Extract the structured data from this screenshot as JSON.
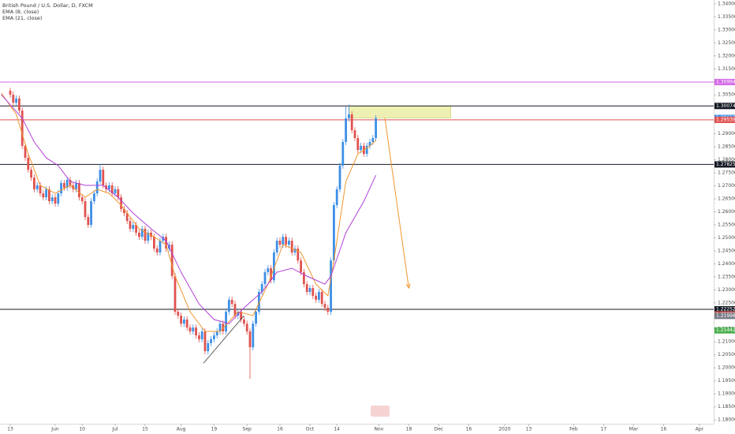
{
  "chart_data": {
    "type": "candlestick",
    "xlim": [
      -3.42,
      234.74
    ],
    "ylim": [
      1.1785,
      1.3415
    ],
    "xticks": [
      {
        "value": 0,
        "label": "13"
      },
      {
        "value": 15,
        "label": "Jun"
      },
      {
        "value": 24,
        "label": "10"
      },
      {
        "value": 35,
        "label": "Jul"
      },
      {
        "value": 45,
        "label": "15"
      },
      {
        "value": 57,
        "label": "Aug"
      },
      {
        "value": 68,
        "label": "19"
      },
      {
        "value": 79,
        "label": "Sep"
      },
      {
        "value": 90,
        "label": "16"
      },
      {
        "value": 100,
        "label": "Oct"
      },
      {
        "value": 109,
        "label": "14"
      },
      {
        "value": 123,
        "label": "Nov"
      },
      {
        "value": 133,
        "label": "18"
      },
      {
        "value": 143,
        "label": "Dec"
      },
      {
        "value": 153,
        "label": "16"
      },
      {
        "value": 165,
        "label": "2020"
      },
      {
        "value": 173,
        "label": "13"
      },
      {
        "value": 188,
        "label": "Feb"
      },
      {
        "value": 198,
        "label": "17"
      },
      {
        "value": 208,
        "label": "Mar"
      },
      {
        "value": 218,
        "label": "16"
      },
      {
        "value": 230,
        "label": "Apr"
      }
    ],
    "yticks": [
      {
        "value": 1.18,
        "label": "1.18000"
      },
      {
        "value": 1.185,
        "label": "1.18500"
      },
      {
        "value": 1.19,
        "label": "1.19000"
      },
      {
        "value": 1.195,
        "label": "1.19500"
      },
      {
        "value": 1.2,
        "label": "1.20000"
      },
      {
        "value": 1.205,
        "label": "1.20500"
      },
      {
        "value": 1.21,
        "label": "1.21000"
      },
      {
        "value": 1.215,
        "label": "1.21500"
      },
      {
        "value": 1.22,
        "label": "1.22000"
      },
      {
        "value": 1.225,
        "label": "1.22500"
      },
      {
        "value": 1.23,
        "label": "1.23000"
      },
      {
        "value": 1.235,
        "label": "1.23500"
      },
      {
        "value": 1.24,
        "label": "1.24000"
      },
      {
        "value": 1.245,
        "label": "1.24500"
      },
      {
        "value": 1.25,
        "label": "1.25000"
      },
      {
        "value": 1.255,
        "label": "1.25500"
      },
      {
        "value": 1.26,
        "label": "1.26000"
      },
      {
        "value": 1.265,
        "label": "1.26500"
      },
      {
        "value": 1.27,
        "label": "1.27000"
      },
      {
        "value": 1.275,
        "label": "1.27500"
      },
      {
        "value": 1.28,
        "label": "1.28000"
      },
      {
        "value": 1.285,
        "label": "1.28500"
      },
      {
        "value": 1.29,
        "label": "1.29000"
      },
      {
        "value": 1.295,
        "label": "1.29500"
      },
      {
        "value": 1.3,
        "label": "1.30000"
      },
      {
        "value": 1.305,
        "label": "1.30500"
      },
      {
        "value": 1.31,
        "label": "1.31000"
      },
      {
        "value": 1.315,
        "label": "1.31500"
      },
      {
        "value": 1.32,
        "label": "1.32000"
      },
      {
        "value": 1.325,
        "label": "1.32500"
      },
      {
        "value": 1.33,
        "label": "1.33000"
      },
      {
        "value": 1.335,
        "label": "1.33500"
      },
      {
        "value": 1.34,
        "label": "1.34000"
      }
    ],
    "grid": false,
    "series": [
      {
        "name": "British Pound / U.S. Dollar, D, FXCM",
        "up_color": "#3d8fe6",
        "down_color": "#e0524f",
        "open": [
          1.3066,
          1.3051,
          1.302,
          1.3036,
          1.299,
          1.2854,
          1.2808,
          1.2762,
          1.2732,
          1.2687,
          1.2702,
          1.2671,
          1.2656,
          1.2687,
          1.2641,
          1.2656,
          1.2632,
          1.2671,
          1.2711,
          1.2693,
          1.2723,
          1.2702,
          1.2687,
          1.2711,
          1.2656,
          1.2641,
          1.258,
          1.255,
          1.2641,
          1.2671,
          1.2717,
          1.2762,
          1.2702,
          1.2687,
          1.2702,
          1.2671,
          1.2687,
          1.2656,
          1.2611,
          1.2595,
          1.2565,
          1.2535,
          1.255,
          1.252,
          1.2504,
          1.2535,
          1.2489,
          1.252,
          1.2504,
          1.2459,
          1.2444,
          1.2489,
          1.2504,
          1.2459,
          1.2474,
          1.2353,
          1.2216,
          1.2201,
          1.217,
          1.2186,
          1.2155,
          1.214,
          1.2155,
          1.2125,
          1.211,
          1.214,
          1.2064,
          1.2095,
          1.211,
          1.2125,
          1.214,
          1.217,
          1.214,
          1.2216,
          1.2262,
          1.2246,
          1.2201,
          1.2216,
          1.2186,
          1.217,
          1.214,
          1.2079,
          1.217,
          1.2216,
          1.2292,
          1.2322,
          1.2368,
          1.2383,
          1.2337,
          1.2444,
          1.2489,
          1.2474,
          1.2504,
          1.2474,
          1.2489,
          1.2444,
          1.2459,
          1.2413,
          1.2368,
          1.2322,
          1.2292,
          1.2307,
          1.2277,
          1.2262,
          1.2292,
          1.2246,
          1.2231,
          1.2216,
          1.2413,
          1.2626,
          1.2687,
          1.2778,
          1.2869,
          1.296,
          1.2975,
          1.2914,
          1.2884,
          1.2838,
          1.2854,
          1.2823,
          1.2854,
          1.2869,
          1.2884
        ],
        "high": [
          1.3078,
          1.3063,
          1.3048,
          1.3048,
          1.3002,
          1.2866,
          1.282,
          1.2774,
          1.2744,
          1.2714,
          1.2714,
          1.2683,
          1.2699,
          1.2699,
          1.2668,
          1.2668,
          1.2683,
          1.2723,
          1.2723,
          1.2735,
          1.2735,
          1.2714,
          1.2723,
          1.2723,
          1.2668,
          1.2653,
          1.2592,
          1.2653,
          1.2683,
          1.2729,
          1.2783,
          1.2774,
          1.2714,
          1.2714,
          1.2714,
          1.2699,
          1.2699,
          1.2668,
          1.2623,
          1.2607,
          1.2577,
          1.2562,
          1.2562,
          1.2532,
          1.2547,
          1.2547,
          1.2532,
          1.2532,
          1.2516,
          1.2471,
          1.2501,
          1.2516,
          1.2516,
          1.2486,
          1.2486,
          1.2365,
          1.2228,
          1.2213,
          1.2198,
          1.2198,
          1.2167,
          1.2167,
          1.2167,
          1.2137,
          1.2152,
          1.2152,
          1.2107,
          1.2122,
          1.2137,
          1.2152,
          1.2182,
          1.2182,
          1.2228,
          1.2274,
          1.2274,
          1.2258,
          1.2228,
          1.2228,
          1.2198,
          1.2182,
          1.2152,
          1.2182,
          1.2228,
          1.2304,
          1.2334,
          1.238,
          1.2395,
          1.2395,
          1.2456,
          1.2501,
          1.2501,
          1.2516,
          1.2516,
          1.2501,
          1.2501,
          1.2471,
          1.2471,
          1.2425,
          1.238,
          1.2334,
          1.2319,
          1.2319,
          1.2289,
          1.2304,
          1.2304,
          1.2258,
          1.2243,
          1.2425,
          1.2638,
          1.2699,
          1.279,
          1.2881,
          1.3007,
          1.3013,
          1.2987,
          1.2926,
          1.2896,
          1.2866,
          1.2866,
          1.2866,
          1.2881,
          1.2896,
          1.2972
        ],
        "low": [
          1.3039,
          1.3008,
          1.3008,
          1.2978,
          1.2842,
          1.2796,
          1.275,
          1.272,
          1.2675,
          1.2675,
          1.2659,
          1.2644,
          1.2644,
          1.2629,
          1.2629,
          1.262,
          1.262,
          1.2659,
          1.2681,
          1.2681,
          1.269,
          1.2675,
          1.2675,
          1.2644,
          1.2629,
          1.2568,
          1.2538,
          1.2538,
          1.2629,
          1.2659,
          1.2705,
          1.269,
          1.2675,
          1.2675,
          1.2659,
          1.2659,
          1.2644,
          1.2599,
          1.2583,
          1.2553,
          1.2523,
          1.2523,
          1.2508,
          1.2492,
          1.2492,
          1.2477,
          1.2477,
          1.2492,
          1.2447,
          1.2432,
          1.2432,
          1.2477,
          1.2447,
          1.2447,
          1.2341,
          1.2204,
          1.2189,
          1.2158,
          1.2158,
          1.2143,
          1.2128,
          1.2128,
          1.2113,
          1.2098,
          1.2098,
          1.2052,
          1.2052,
          1.2083,
          1.2098,
          1.2113,
          1.2128,
          1.2128,
          1.2128,
          1.2204,
          1.2234,
          1.2189,
          1.2189,
          1.2174,
          1.2158,
          1.2128,
          1.1958,
          1.2067,
          1.2158,
          1.2204,
          1.228,
          1.231,
          1.2356,
          1.2325,
          1.2325,
          1.2432,
          1.2462,
          1.2462,
          1.2462,
          1.2462,
          1.2432,
          1.2432,
          1.2401,
          1.2356,
          1.231,
          1.228,
          1.228,
          1.2265,
          1.225,
          1.225,
          1.2234,
          1.2219,
          1.2204,
          1.2204,
          1.2401,
          1.2614,
          1.2675,
          1.2766,
          1.2857,
          1.2948,
          1.2902,
          1.2872,
          1.2826,
          1.2826,
          1.2811,
          1.2811,
          1.2842,
          1.2857,
          1.2872
        ],
        "close": [
          1.3051,
          1.302,
          1.3036,
          1.299,
          1.2854,
          1.2808,
          1.2762,
          1.2732,
          1.2687,
          1.2702,
          1.2671,
          1.2656,
          1.2687,
          1.2641,
          1.2656,
          1.2632,
          1.2671,
          1.2711,
          1.2693,
          1.2723,
          1.2702,
          1.2687,
          1.2711,
          1.2656,
          1.2641,
          1.258,
          1.255,
          1.2641,
          1.2671,
          1.2717,
          1.2762,
          1.2702,
          1.2687,
          1.2702,
          1.2671,
          1.2687,
          1.2656,
          1.2611,
          1.2595,
          1.2565,
          1.2535,
          1.255,
          1.252,
          1.2504,
          1.2535,
          1.2489,
          1.252,
          1.2504,
          1.2459,
          1.2444,
          1.2489,
          1.2504,
          1.2459,
          1.2474,
          1.2353,
          1.2216,
          1.2201,
          1.217,
          1.2186,
          1.2155,
          1.214,
          1.2155,
          1.2125,
          1.211,
          1.214,
          1.2064,
          1.2095,
          1.211,
          1.2125,
          1.214,
          1.217,
          1.214,
          1.2216,
          1.2262,
          1.2246,
          1.2201,
          1.2216,
          1.2186,
          1.217,
          1.214,
          1.2079,
          1.217,
          1.2216,
          1.2292,
          1.2322,
          1.2368,
          1.2383,
          1.2337,
          1.2444,
          1.2489,
          1.2474,
          1.2504,
          1.2474,
          1.2489,
          1.2444,
          1.2459,
          1.2413,
          1.2368,
          1.2322,
          1.2292,
          1.2307,
          1.2277,
          1.2262,
          1.2292,
          1.2246,
          1.2231,
          1.2216,
          1.2413,
          1.2626,
          1.2687,
          1.2778,
          1.2869,
          1.296,
          1.2975,
          1.2914,
          1.2884,
          1.2838,
          1.2854,
          1.2823,
          1.2854,
          1.2869,
          1.2884,
          1.296
        ]
      },
      {
        "name": "EMA (8, close)",
        "color": "#f0962e",
        "x": [
          -3,
          2,
          6,
          10,
          15,
          20,
          25,
          29,
          33,
          37,
          43,
          48,
          52,
          55,
          60,
          65,
          70,
          76,
          81,
          86,
          91,
          97,
          102,
          106,
          108,
          112,
          116,
          120,
          122
        ],
        "values": [
          1.3057,
          1.2975,
          1.2823,
          1.2702,
          1.2671,
          1.2702,
          1.2656,
          1.2687,
          1.2671,
          1.2626,
          1.2535,
          1.2504,
          1.2474,
          1.2353,
          1.2216,
          1.214,
          1.214,
          1.2216,
          1.2201,
          1.2322,
          1.2474,
          1.2444,
          1.2322,
          1.2277,
          1.2413,
          1.2717,
          1.2823,
          1.2854,
          1.2875
        ]
      },
      {
        "name": "EMA (21, close)",
        "color": "#b340d6",
        "x": [
          -3,
          4,
          8,
          12,
          16,
          20,
          25,
          31,
          36,
          41,
          47,
          52,
          57,
          63,
          68,
          73,
          78,
          84,
          89,
          94,
          99,
          105,
          107,
          112,
          118,
          122
        ],
        "values": [
          1.3051,
          1.296,
          1.2869,
          1.2808,
          1.2778,
          1.2717,
          1.2702,
          1.2702,
          1.2656,
          1.2595,
          1.2535,
          1.2489,
          1.2368,
          1.2246,
          1.2186,
          1.217,
          1.2231,
          1.2292,
          1.2368,
          1.2383,
          1.2353,
          1.2322,
          1.2353,
          1.252,
          1.2641,
          1.2741
        ]
      }
    ],
    "levels": [
      {
        "value": 1.30994,
        "label": "1.30994",
        "color": "#d36ae8",
        "line": true
      },
      {
        "value": 1.30074,
        "label": "1.30074",
        "color": "#131722",
        "line": true
      },
      {
        "value": 1.29613,
        "label": "1.29613",
        "color": "#3d8fe6",
        "line": false
      },
      {
        "value": 1.29539,
        "label": "1.29539",
        "color": "#e0524f",
        "line": true
      },
      {
        "value": 1.27825,
        "label": "1.27825",
        "color": "#131722",
        "line": true
      },
      {
        "value": 1.22252,
        "label": "1.22252",
        "color": "#131722",
        "line": true
      },
      {
        "value": 1.22053,
        "label": "1.22053",
        "color": "#e0524f",
        "line": false
      },
      {
        "value": 1.21998,
        "label": "1.21998",
        "color": "#787b86",
        "line": false
      },
      {
        "value": 1.21442,
        "label": "1.21442",
        "color": "#4caf50",
        "line": false
      }
    ],
    "drawings": {
      "zone": {
        "x": [
          113,
          147
        ],
        "y": [
          1.30074,
          1.29613
        ],
        "color": "#e8ea9a"
      },
      "arrow": {
        "x": [
          125,
          133
        ],
        "y": [
          1.2961,
          1.2307
        ],
        "color": "#f0962e"
      },
      "trendline": {
        "x": [
          64.5,
          78
        ],
        "y": [
          1.2018,
          1.2201
        ],
        "color": "#3a3a3a"
      }
    }
  }
}
